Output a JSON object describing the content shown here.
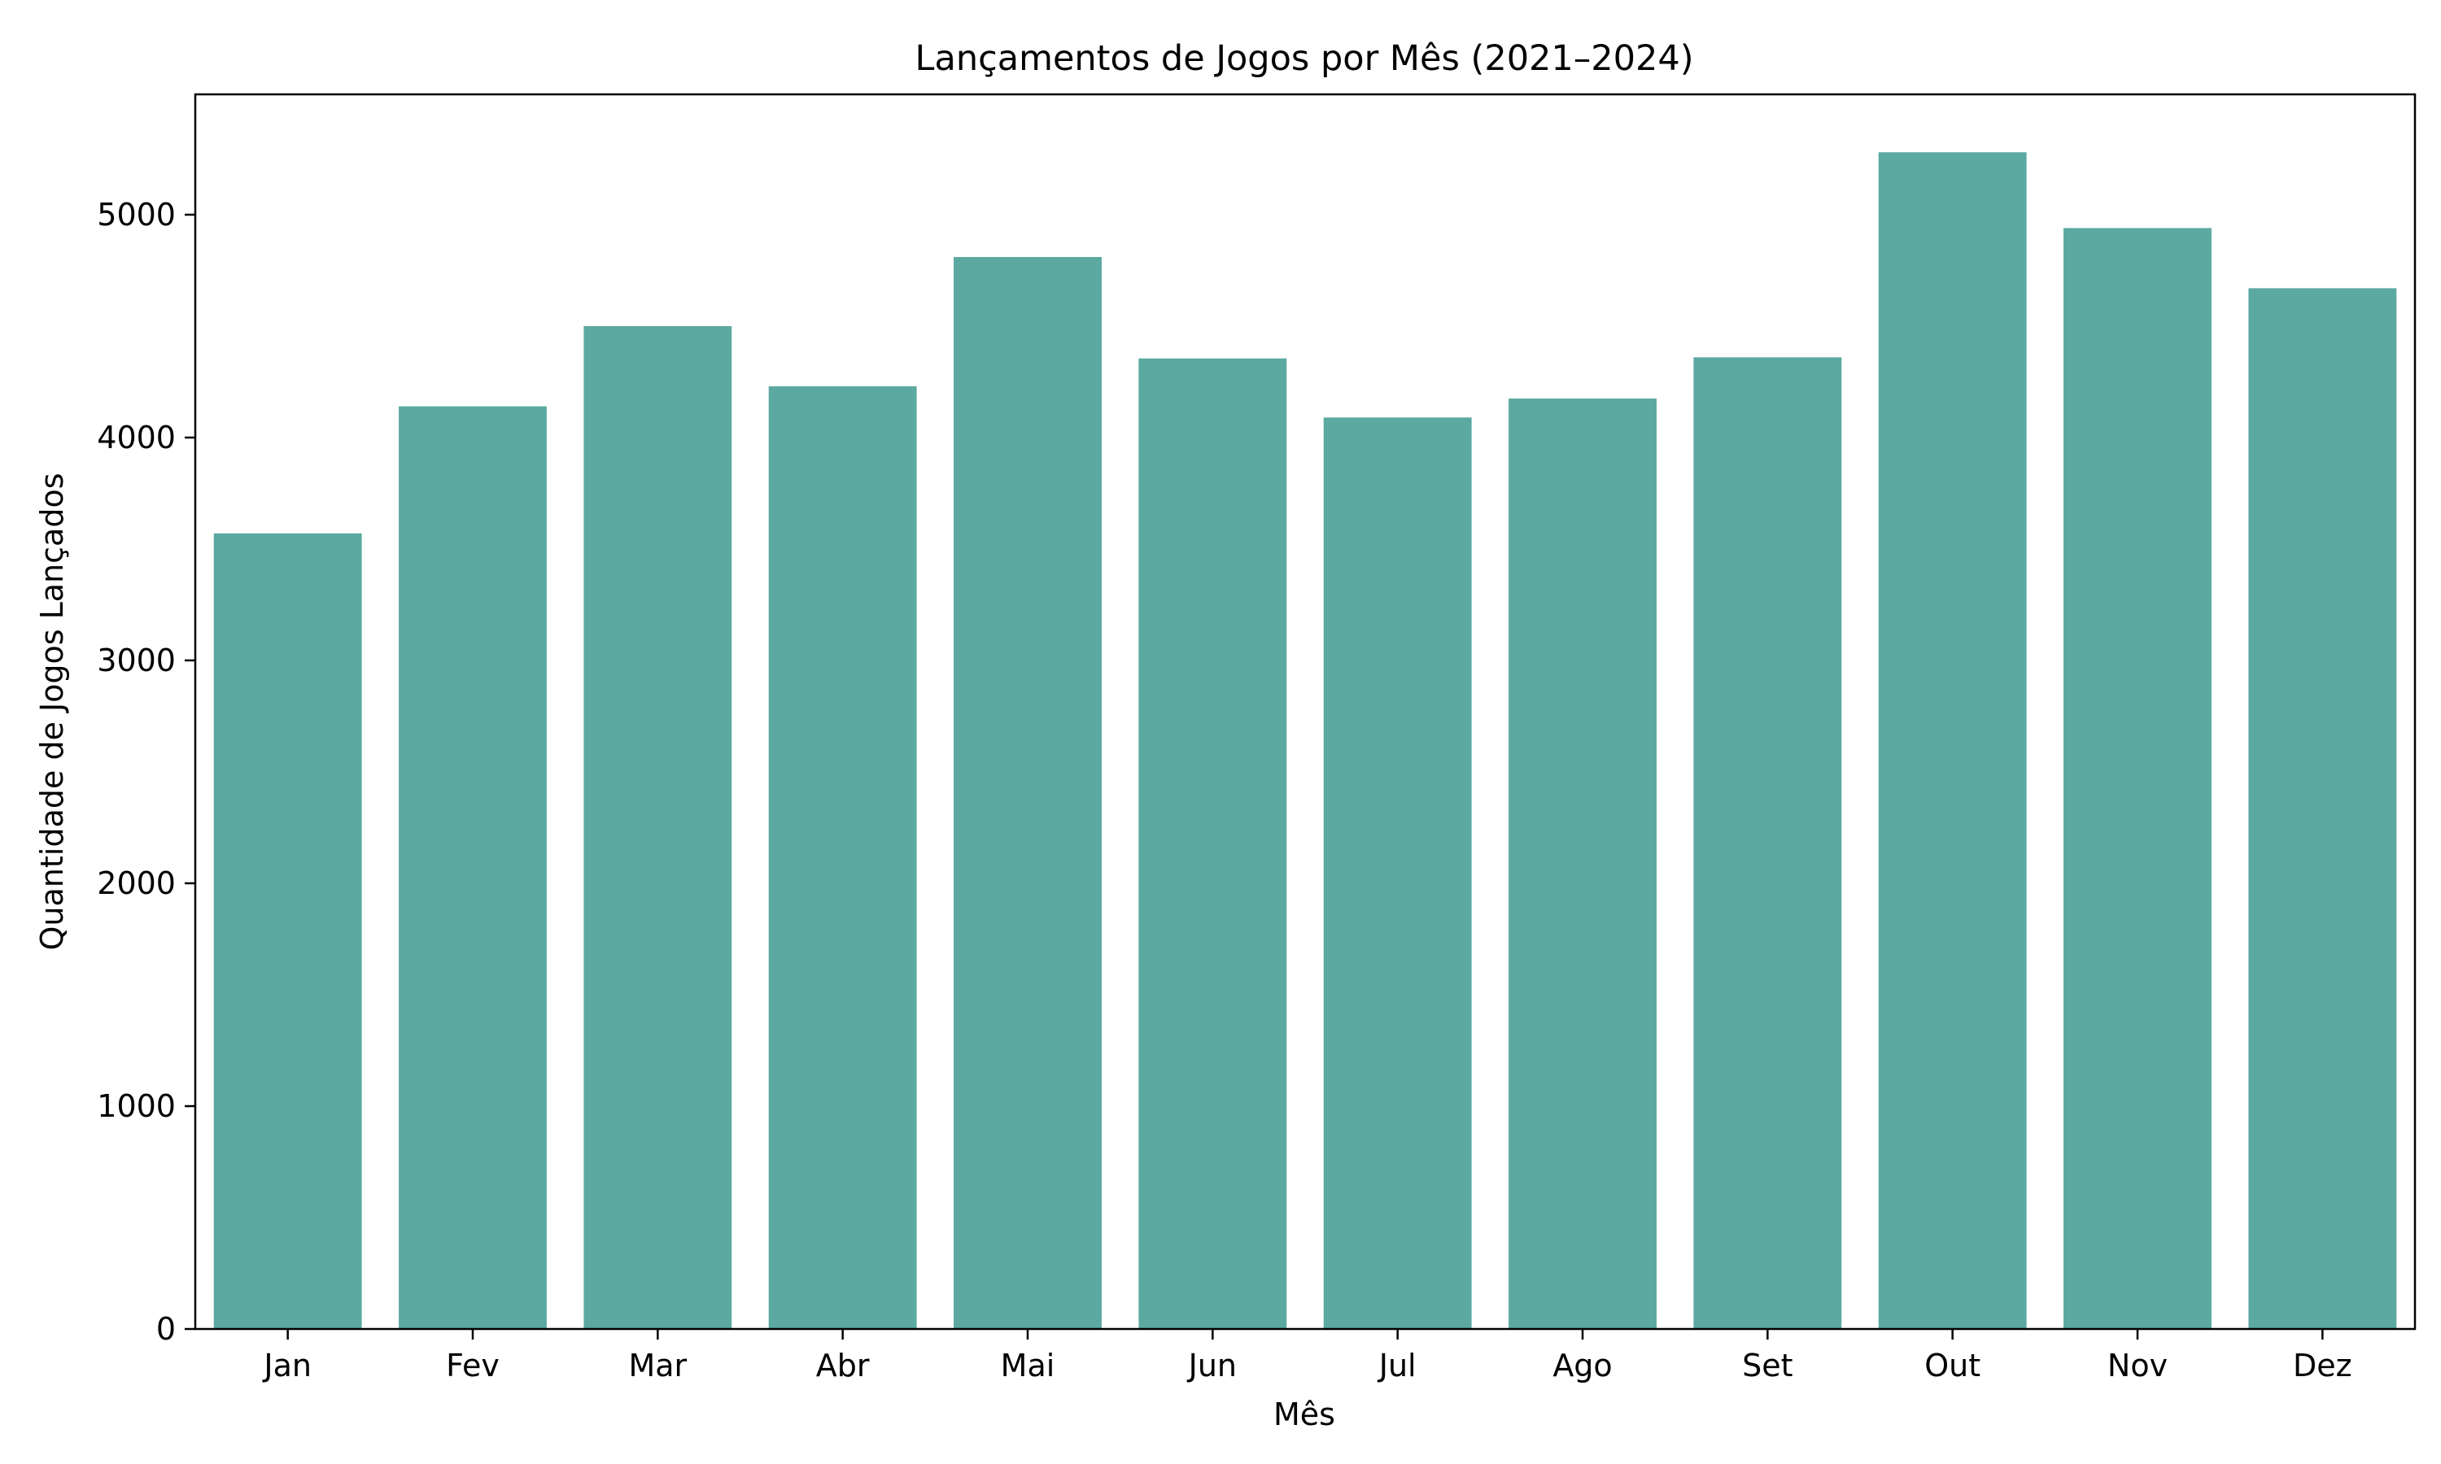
{
  "chart_data": {
    "type": "bar",
    "title": "Lançamentos de Jogos por Mês (2021–2024)",
    "xlabel": "Mês",
    "ylabel": "Quantidade de Jogos Lançados",
    "categories": [
      "Jan",
      "Fev",
      "Mar",
      "Abr",
      "Mai",
      "Jun",
      "Jul",
      "Ago",
      "Set",
      "Out",
      "Nov",
      "Dez"
    ],
    "values": [
      3570,
      4140,
      4500,
      4230,
      4810,
      4355,
      4090,
      4175,
      4360,
      5280,
      4940,
      4670
    ],
    "ylim": [
      0,
      5540
    ],
    "yticks": [
      0,
      1000,
      2000,
      3000,
      4000,
      5000
    ],
    "grid": false,
    "legend": "none",
    "bar_color": "#5ba9a0"
  }
}
